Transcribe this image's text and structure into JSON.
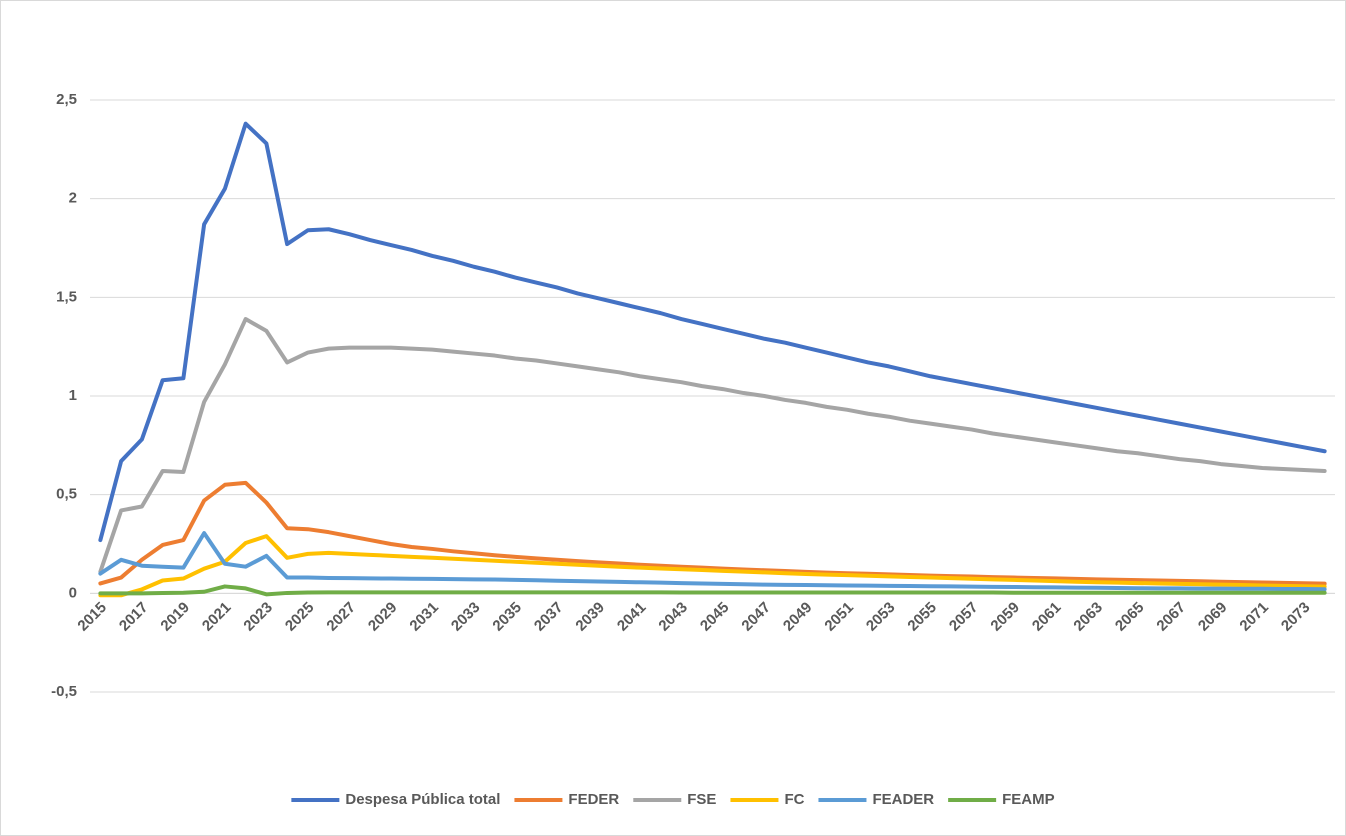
{
  "chart_data": {
    "type": "line",
    "categories": [
      "2015",
      null,
      "2017",
      null,
      "2019",
      null,
      "2021",
      null,
      "2023",
      null,
      "2025",
      null,
      "2027",
      null,
      "2029",
      null,
      "2031",
      null,
      "2033",
      null,
      "2035",
      null,
      "2037",
      null,
      "2039",
      null,
      "2041",
      null,
      "2043",
      null,
      "2045",
      null,
      "2047",
      null,
      "2049",
      null,
      "2051",
      null,
      "2053",
      null,
      "2055",
      null,
      "2057",
      null,
      "2059",
      null,
      "2061",
      null,
      "2063",
      null,
      "2065",
      null,
      "2067",
      null,
      "2069",
      null,
      "2071",
      null,
      "2073",
      null
    ],
    "ylim": [
      -0.5,
      2.5
    ],
    "yticks": [
      {
        "value": -0.5,
        "label": "-0,5"
      },
      0,
      {
        "value": 0.5,
        "label": "0,5"
      },
      1,
      {
        "value": 1.5,
        "label": "1,5"
      },
      2,
      {
        "value": 2.5,
        "label": "2,5"
      }
    ],
    "grid": true,
    "legend": "bottom",
    "series": [
      {
        "name": "Despesa Pública total",
        "color": "#4472c4",
        "values": [
          0.27,
          0.67,
          0.78,
          1.08,
          1.09,
          1.87,
          2.05,
          2.38,
          2.28,
          1.77,
          1.84,
          1.845,
          1.82,
          1.79,
          1.765,
          1.74,
          1.71,
          1.685,
          1.655,
          1.63,
          1.6,
          1.575,
          1.55,
          1.52,
          1.495,
          1.47,
          1.445,
          1.42,
          1.39,
          1.365,
          1.34,
          1.315,
          1.29,
          1.27,
          1.245,
          1.22,
          1.195,
          1.17,
          1.15,
          1.125,
          1.1,
          1.08,
          1.06,
          1.04,
          1.02,
          1.0,
          0.98,
          0.96,
          0.94,
          0.92,
          0.9,
          0.88,
          0.86,
          0.84,
          0.82,
          0.8,
          0.78,
          0.76,
          0.74,
          0.72
        ]
      },
      {
        "name": "FEDER",
        "color": "#ed7d31",
        "values": [
          0.05,
          0.08,
          0.17,
          0.245,
          0.27,
          0.47,
          0.55,
          0.56,
          0.46,
          0.33,
          0.325,
          0.31,
          0.29,
          0.27,
          0.25,
          0.235,
          0.225,
          0.213,
          0.203,
          0.193,
          0.185,
          0.177,
          0.17,
          0.163,
          0.157,
          0.151,
          0.145,
          0.14,
          0.135,
          0.13,
          0.125,
          0.121,
          0.117,
          0.113,
          0.109,
          0.105,
          0.102,
          0.099,
          0.096,
          0.093,
          0.09,
          0.087,
          0.085,
          0.082,
          0.08,
          0.078,
          0.076,
          0.073,
          0.071,
          0.069,
          0.067,
          0.065,
          0.063,
          0.061,
          0.059,
          0.057,
          0.055,
          0.053,
          0.051,
          0.049
        ]
      },
      {
        "name": "FSE",
        "color": "#a5a5a5",
        "values": [
          0.11,
          0.42,
          0.44,
          0.62,
          0.615,
          0.97,
          1.16,
          1.39,
          1.33,
          1.17,
          1.22,
          1.24,
          1.245,
          1.245,
          1.245,
          1.24,
          1.235,
          1.225,
          1.215,
          1.205,
          1.19,
          1.18,
          1.165,
          1.15,
          1.135,
          1.12,
          1.1,
          1.085,
          1.07,
          1.05,
          1.035,
          1.015,
          1.0,
          0.98,
          0.965,
          0.945,
          0.93,
          0.91,
          0.895,
          0.875,
          0.86,
          0.845,
          0.83,
          0.81,
          0.795,
          0.78,
          0.765,
          0.75,
          0.735,
          0.72,
          0.71,
          0.695,
          0.68,
          0.67,
          0.655,
          0.645,
          0.635,
          0.63,
          0.625,
          0.62
        ]
      },
      {
        "name": "FC",
        "color": "#ffc000",
        "values": [
          -0.01,
          -0.01,
          0.02,
          0.065,
          0.075,
          0.125,
          0.16,
          0.255,
          0.29,
          0.18,
          0.2,
          0.205,
          0.2,
          0.195,
          0.19,
          0.185,
          0.18,
          0.175,
          0.17,
          0.165,
          0.16,
          0.155,
          0.15,
          0.145,
          0.14,
          0.135,
          0.13,
          0.126,
          0.122,
          0.118,
          0.114,
          0.11,
          0.106,
          0.102,
          0.098,
          0.095,
          0.092,
          0.089,
          0.086,
          0.083,
          0.08,
          0.077,
          0.074,
          0.071,
          0.068,
          0.065,
          0.062,
          0.059,
          0.056,
          0.054,
          0.052,
          0.05,
          0.048,
          0.046,
          0.044,
          0.042,
          0.04,
          0.038,
          0.036,
          0.034
        ]
      },
      {
        "name": "FEADER",
        "color": "#5b9bd5",
        "values": [
          0.1,
          0.17,
          0.14,
          0.135,
          0.13,
          0.305,
          0.15,
          0.135,
          0.19,
          0.08,
          0.08,
          0.078,
          0.077,
          0.076,
          0.075,
          0.074,
          0.073,
          0.072,
          0.071,
          0.07,
          0.068,
          0.066,
          0.064,
          0.062,
          0.06,
          0.058,
          0.056,
          0.054,
          0.052,
          0.05,
          0.048,
          0.046,
          0.044,
          0.043,
          0.042,
          0.041,
          0.04,
          0.039,
          0.038,
          0.037,
          0.036,
          0.035,
          0.034,
          0.033,
          0.032,
          0.031,
          0.03,
          0.029,
          0.028,
          0.027,
          0.026,
          0.025,
          0.025,
          0.024,
          0.024,
          0.023,
          0.023,
          0.022,
          0.022,
          0.021
        ]
      },
      {
        "name": "FEAMP",
        "color": "#70ad47",
        "values": [
          0,
          0,
          0,
          0.002,
          0.003,
          0.008,
          0.035,
          0.025,
          -0.005,
          0.002,
          0.004,
          0.005,
          0.005,
          0.005,
          0.005,
          0.005,
          0.005,
          0.005,
          0.005,
          0.005,
          0.005,
          0.005,
          0.005,
          0.005,
          0.005,
          0.005,
          0.005,
          0.005,
          0.004,
          0.004,
          0.004,
          0.004,
          0.004,
          0.004,
          0.004,
          0.004,
          0.004,
          0.004,
          0.004,
          0.004,
          0.004,
          0.004,
          0.004,
          0.004,
          0.003,
          0.003,
          0.003,
          0.003,
          0.003,
          0.003,
          0.003,
          0.003,
          0.003,
          0.003,
          0.003,
          0.003,
          0.003,
          0.003,
          0.003,
          0.003
        ]
      }
    ]
  }
}
